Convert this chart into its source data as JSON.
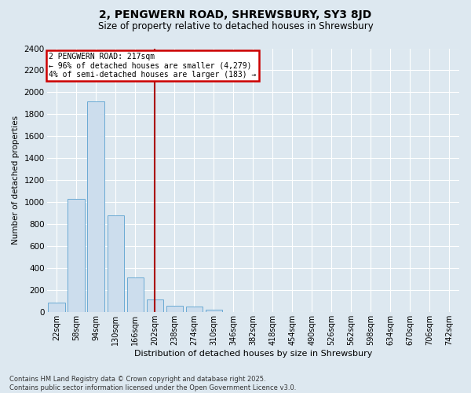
{
  "title_line1": "2, PENGWERN ROAD, SHREWSBURY, SY3 8JD",
  "title_line2": "Size of property relative to detached houses in Shrewsbury",
  "xlabel": "Distribution of detached houses by size in Shrewsbury",
  "ylabel": "Number of detached properties",
  "categories": [
    "22sqm",
    "58sqm",
    "94sqm",
    "130sqm",
    "166sqm",
    "202sqm",
    "238sqm",
    "274sqm",
    "310sqm",
    "346sqm",
    "382sqm",
    "418sqm",
    "454sqm",
    "490sqm",
    "526sqm",
    "562sqm",
    "598sqm",
    "634sqm",
    "670sqm",
    "706sqm",
    "742sqm"
  ],
  "values": [
    90,
    1030,
    1920,
    880,
    315,
    120,
    60,
    50,
    25,
    0,
    0,
    0,
    0,
    0,
    0,
    0,
    0,
    0,
    0,
    0,
    0
  ],
  "bar_color": "#ccdded",
  "bar_edge_color": "#6aaad4",
  "subject_label": "2 PENGWERN ROAD: 217sqm",
  "annotation_line1": "← 96% of detached houses are smaller (4,279)",
  "annotation_line2": "4% of semi-detached houses are larger (183) →",
  "annotation_box_color": "#ffffff",
  "annotation_box_edge": "#cc0000",
  "vline_color": "#aa0000",
  "background_color": "#dde8f0",
  "plot_background": "#dde8f0",
  "grid_color": "#ffffff",
  "ylim": [
    0,
    2400
  ],
  "yticks": [
    0,
    200,
    400,
    600,
    800,
    1000,
    1200,
    1400,
    1600,
    1800,
    2000,
    2200,
    2400
  ],
  "footer_line1": "Contains HM Land Registry data © Crown copyright and database right 2025.",
  "footer_line2": "Contains public sector information licensed under the Open Government Licence v3.0."
}
